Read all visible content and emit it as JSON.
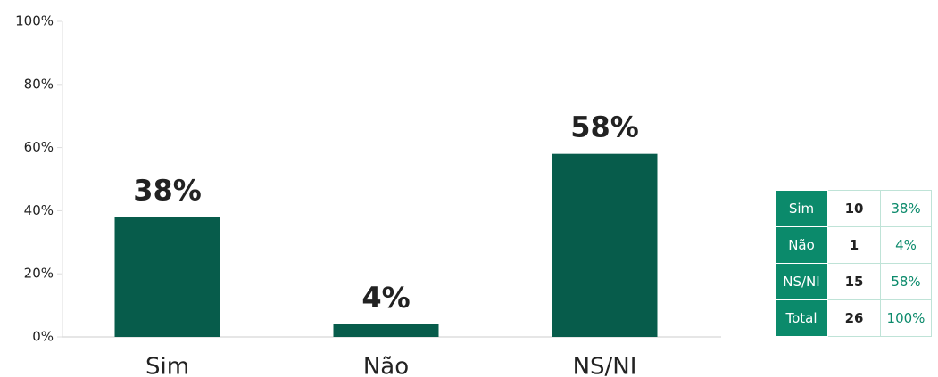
{
  "chart_data": {
    "type": "bar",
    "categories": [
      "Sim",
      "Não",
      "NS/NI"
    ],
    "values": [
      38,
      4,
      58
    ],
    "value_labels": [
      "38%",
      "4%",
      "58%"
    ],
    "color": "#075c4b",
    "ylim": [
      0,
      100
    ],
    "yticks": [
      {
        "value": 0,
        "label": "0%"
      },
      {
        "value": 20,
        "label": "20%"
      },
      {
        "value": 40,
        "label": "40%"
      },
      {
        "value": 60,
        "label": "60%"
      },
      {
        "value": 80,
        "label": "80%"
      },
      {
        "value": 100,
        "label": "100%"
      }
    ],
    "grid": false
  },
  "table": {
    "rows": [
      [
        "Sim",
        "10",
        "38%"
      ],
      [
        "Não",
        "1",
        "4%"
      ],
      [
        "NS/NI",
        "15",
        "58%"
      ],
      [
        "Total",
        "26",
        "100%"
      ]
    ]
  }
}
